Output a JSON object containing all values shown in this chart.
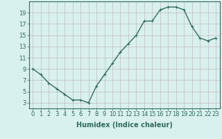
{
  "x": [
    0,
    1,
    2,
    3,
    4,
    5,
    6,
    7,
    8,
    9,
    10,
    11,
    12,
    13,
    14,
    15,
    16,
    17,
    18,
    19,
    20,
    21,
    22,
    23
  ],
  "y": [
    9,
    8,
    6.5,
    5.5,
    4.5,
    3.5,
    3.5,
    3,
    6,
    8,
    10,
    12,
    13.5,
    15,
    17.5,
    17.5,
    19.5,
    20,
    20,
    19.5,
    16.5,
    14.5,
    14,
    14.5
  ],
  "line_color": "#2e6b5e",
  "marker": "+",
  "marker_size": 3,
  "bg_color": "#d8f0ee",
  "grid_color": "#c0b0b0",
  "xlabel": "Humidex (Indice chaleur)",
  "xlim": [
    -0.5,
    23.5
  ],
  "ylim": [
    2,
    21
  ],
  "yticks": [
    3,
    5,
    7,
    9,
    11,
    13,
    15,
    17,
    19
  ],
  "xticks": [
    0,
    1,
    2,
    3,
    4,
    5,
    6,
    7,
    8,
    9,
    10,
    11,
    12,
    13,
    14,
    15,
    16,
    17,
    18,
    19,
    20,
    21,
    22,
    23
  ],
  "xtick_labels": [
    "0",
    "1",
    "2",
    "3",
    "4",
    "5",
    "6",
    "7",
    "8",
    "9",
    "10",
    "11",
    "12",
    "13",
    "14",
    "15",
    "16",
    "17",
    "18",
    "19",
    "20",
    "21",
    "22",
    "23"
  ],
  "xlabel_fontsize": 7,
  "tick_fontsize": 6,
  "linewidth": 1.0
}
